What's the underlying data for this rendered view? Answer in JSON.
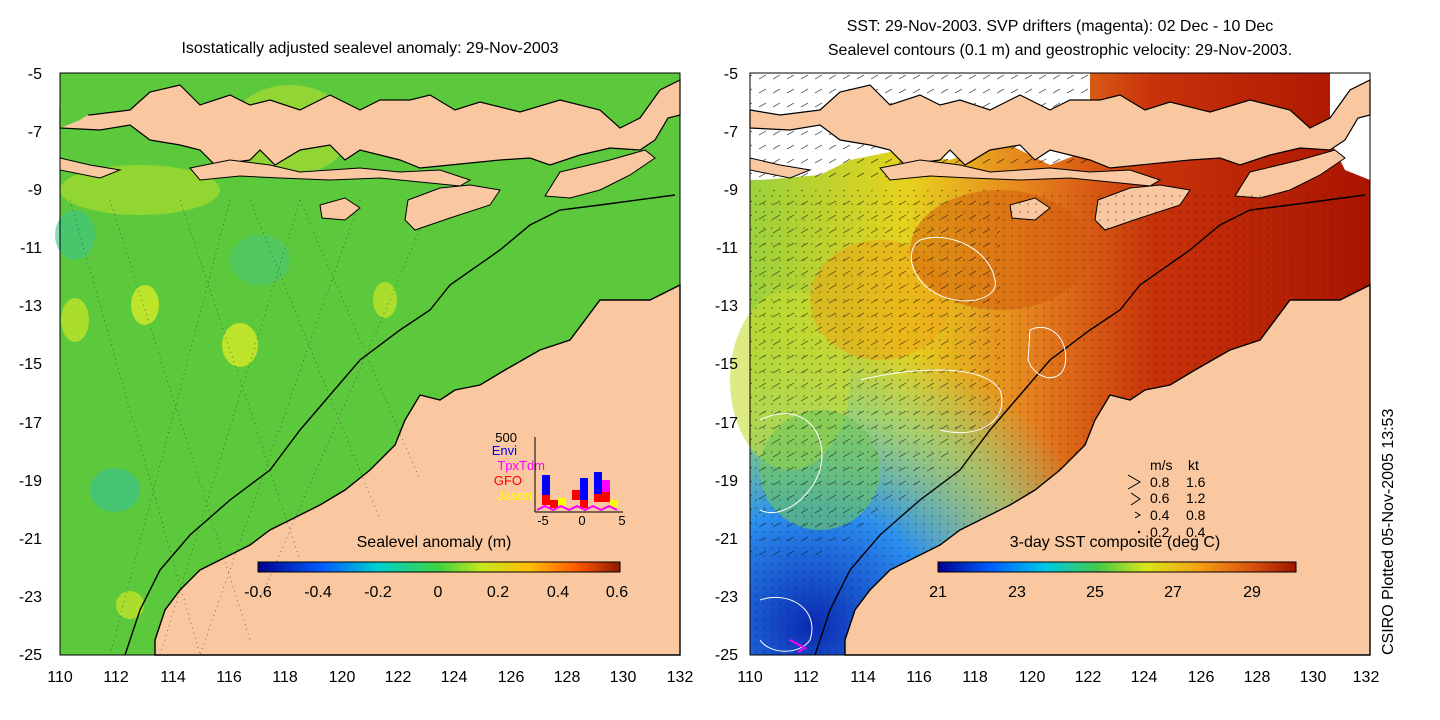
{
  "left_panel": {
    "title": "Isostatically adjusted sealevel anomaly: 29-Nov-2003",
    "y_ticks": [
      "-5",
      "-7",
      "-9",
      "-11",
      "-13",
      "-15",
      "-17",
      "-19",
      "-21",
      "-23",
      "-25"
    ],
    "x_ticks": [
      "110",
      "112",
      "114",
      "116",
      "118",
      "120",
      "122",
      "124",
      "126",
      "128",
      "130",
      "132"
    ],
    "colorbar": {
      "label": "Sealevel anomaly (m)",
      "ticks": [
        "-0.6",
        "-0.4",
        "-0.2",
        "0",
        "0.2",
        "0.4",
        "0.6"
      ]
    },
    "inset": {
      "y_label": "500",
      "x_ticks": [
        "-5",
        "0",
        "5"
      ],
      "legend": [
        {
          "name": "Envi",
          "color": "#0000ff"
        },
        {
          "name": "TpxTdm",
          "color": "#ff00ff"
        },
        {
          "name": "GFO",
          "color": "#ff0000"
        },
        {
          "name": "Jason",
          "color": "#ffff00"
        }
      ]
    }
  },
  "right_panel": {
    "title_line1": "SST: 29-Nov-2003. SVP drifters (magenta): 02 Dec - 10 Dec",
    "title_line2": "Sealevel contours (0.1 m) and geostrophic velocity: 29-Nov-2003.",
    "y_ticks": [
      "-5",
      "-7",
      "-9",
      "-11",
      "-13",
      "-15",
      "-17",
      "-19",
      "-21",
      "-23",
      "-25"
    ],
    "x_ticks": [
      "110",
      "112",
      "114",
      "116",
      "118",
      "120",
      "122",
      "124",
      "126",
      "128",
      "130",
      "132"
    ],
    "colorbar": {
      "label": "3-day SST composite (deg C)",
      "ticks": [
        "21",
        "23",
        "25",
        "27",
        "29"
      ]
    },
    "velocity_legend": {
      "header_ms": "m/s",
      "header_kt": "kt",
      "rows": [
        {
          "ms": "0.8",
          "kt": "1.6"
        },
        {
          "ms": "0.6",
          "kt": "1.2"
        },
        {
          "ms": "0.4",
          "kt": "0.8"
        },
        {
          "ms": "0.2",
          "kt": "0.4"
        }
      ]
    }
  },
  "side_note": "CSIRO Plotted 05-Nov-2005 13:53",
  "colors": {
    "land": "#fac8a0",
    "ocean_green": "#5fcc3c",
    "sst_warm": "#b31a00",
    "sst_orange": "#e0761a"
  }
}
